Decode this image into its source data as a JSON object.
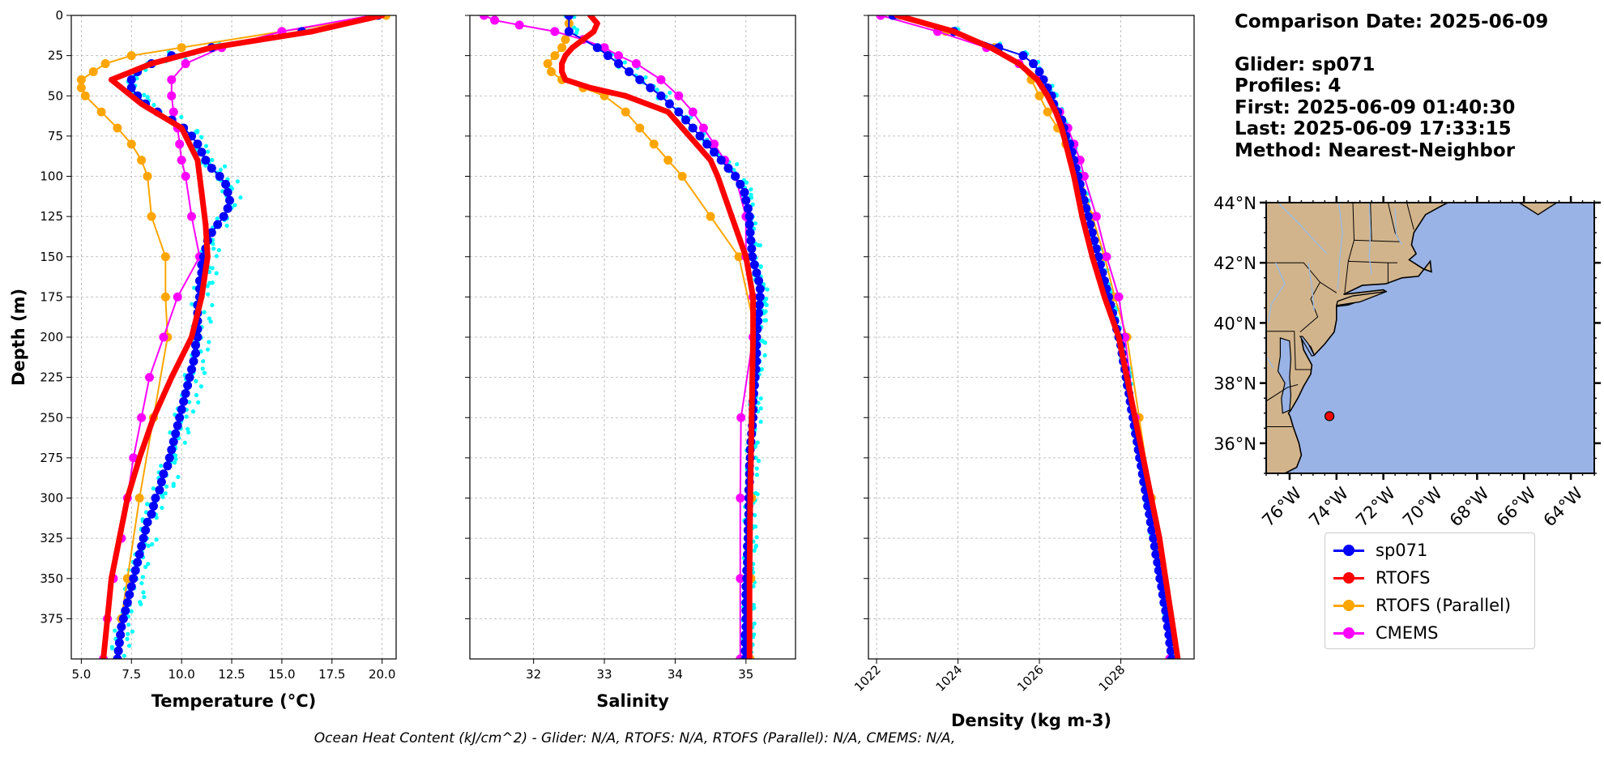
{
  "info": {
    "comparison_date": "Comparison Date: 2025-06-09",
    "glider": "Glider: sp071",
    "profiles": "Profiles: 4",
    "first": "First: 2025-06-09 01:40:30",
    "last": "Last: 2025-06-09 17:33:15",
    "method": "Method: Nearest-Neighbor"
  },
  "footer": "Ocean Heat Content (kJ/cm^2) - Glider: N/A,  RTOFS: N/A,  RTOFS (Parallel): N/A,  CMEMS: N/A,",
  "legend": [
    {
      "label": "sp071",
      "color": "#0000ff"
    },
    {
      "label": "RTOFS",
      "color": "#ff0000"
    },
    {
      "label": "RTOFS (Parallel)",
      "color": "#ffa500"
    },
    {
      "label": "CMEMS",
      "color": "#ff00ff"
    }
  ],
  "colors": {
    "glider": "#0000ff",
    "glider_raw": "#00ffff",
    "rtofs": "#ff0000",
    "rtofs_parallel": "#ffa500",
    "cmems": "#ff00ff",
    "land": "#d2b48c",
    "ocean": "#99b3e6"
  },
  "chart_data": [
    {
      "type": "line",
      "xlabel": "Temperature (°C)",
      "ylabel": "Depth (m)",
      "xlim": [
        4.5,
        20.7
      ],
      "ylim": [
        400,
        0
      ],
      "xticks": [
        "5.0",
        "7.5",
        "10.0",
        "12.5",
        "15.0",
        "17.5",
        "20.0"
      ],
      "yticks": [
        "0",
        "25",
        "50",
        "75",
        "100",
        "125",
        "150",
        "175",
        "200",
        "225",
        "250",
        "275",
        "300",
        "325",
        "350",
        "375"
      ],
      "grid": true,
      "series": [
        {
          "name": "sp071",
          "depth": [
            0,
            10,
            20,
            25,
            30,
            35,
            40,
            45,
            50,
            55,
            60,
            65,
            70,
            75,
            80,
            85,
            90,
            95,
            100,
            105,
            110,
            115,
            120,
            125,
            130,
            135,
            140,
            145,
            150,
            155,
            160,
            165,
            170,
            175,
            180,
            185,
            190,
            195,
            200,
            205,
            210,
            215,
            220,
            225,
            230,
            235,
            240,
            245,
            250,
            255,
            260,
            265,
            270,
            275,
            280,
            285,
            290,
            295,
            300,
            305,
            310,
            315,
            320,
            325,
            330,
            335,
            340,
            345,
            350,
            355,
            360,
            365,
            370,
            375,
            380,
            385,
            390,
            395,
            400
          ],
          "values": [
            19.8,
            16.0,
            11.5,
            9.5,
            8.5,
            7.8,
            7.5,
            7.5,
            7.8,
            8.2,
            8.8,
            9.5,
            10.1,
            10.5,
            10.8,
            11.0,
            11.2,
            11.5,
            11.9,
            12.2,
            12.3,
            12.4,
            12.3,
            12.1,
            11.8,
            11.5,
            11.3,
            11.2,
            11.1,
            11.0,
            11.0,
            10.9,
            10.9,
            10.9,
            10.8,
            10.8,
            10.8,
            10.8,
            10.8,
            10.7,
            10.7,
            10.6,
            10.5,
            10.4,
            10.3,
            10.2,
            10.1,
            10.0,
            9.9,
            9.8,
            9.7,
            9.6,
            9.5,
            9.4,
            9.3,
            9.1,
            9.0,
            8.9,
            8.7,
            8.6,
            8.5,
            8.3,
            8.2,
            8.1,
            8.0,
            7.9,
            7.8,
            7.7,
            7.6,
            7.5,
            7.4,
            7.3,
            7.2,
            7.1,
            7.0,
            6.95,
            6.9,
            6.85,
            6.8
          ]
        },
        {
          "name": "RTOFS",
          "depth": [
            0,
            10,
            20,
            30,
            40,
            55,
            70,
            90,
            110,
            130,
            150,
            175,
            200,
            225,
            250,
            275,
            300,
            325,
            350,
            375,
            400
          ],
          "values": [
            20.0,
            16.5,
            11.5,
            8.5,
            6.5,
            8.0,
            10.0,
            10.8,
            11.0,
            11.2,
            11.3,
            11.0,
            10.5,
            9.5,
            8.6,
            7.9,
            7.3,
            6.9,
            6.5,
            6.3,
            6.1
          ]
        },
        {
          "name": "RTOFS (Parallel)",
          "depth": [
            0,
            10,
            20,
            25,
            30,
            35,
            40,
            45,
            50,
            60,
            70,
            80,
            90,
            100,
            125,
            150,
            175,
            200,
            250,
            300,
            350,
            375,
            400
          ],
          "values": [
            20.2,
            15.0,
            10.0,
            7.5,
            6.2,
            5.6,
            5.0,
            5.0,
            5.2,
            6.0,
            6.8,
            7.5,
            8.0,
            8.3,
            8.5,
            9.2,
            9.2,
            9.3,
            8.6,
            7.9,
            7.3,
            7.0,
            6.8
          ]
        },
        {
          "name": "CMEMS",
          "depth": [
            0,
            10,
            20,
            30,
            40,
            50,
            60,
            70,
            80,
            90,
            100,
            125,
            150,
            175,
            200,
            225,
            250,
            275,
            300,
            325,
            350,
            375,
            400
          ],
          "values": [
            19.5,
            15.0,
            12.0,
            10.2,
            9.5,
            9.5,
            9.6,
            9.8,
            9.9,
            10.0,
            10.2,
            10.5,
            10.9,
            9.8,
            9.1,
            8.4,
            8.0,
            7.6,
            7.3,
            7.0,
            6.6,
            6.3,
            6.1
          ]
        }
      ]
    },
    {
      "type": "line",
      "xlabel": "Salinity",
      "xlim": [
        31.1,
        35.7
      ],
      "ylim": [
        400,
        0
      ],
      "xticks": [
        "32",
        "33",
        "34",
        "35"
      ],
      "grid": true,
      "series": [
        {
          "name": "sp071",
          "depth": [
            0,
            10,
            20,
            25,
            30,
            35,
            40,
            45,
            50,
            55,
            60,
            65,
            70,
            75,
            80,
            85,
            90,
            95,
            100,
            105,
            110,
            115,
            120,
            125,
            130,
            135,
            140,
            145,
            150,
            155,
            160,
            165,
            170,
            175,
            180,
            185,
            190,
            195,
            200,
            205,
            210,
            215,
            220,
            225,
            230,
            235,
            240,
            245,
            250,
            255,
            260,
            265,
            270,
            275,
            280,
            285,
            290,
            295,
            300,
            305,
            310,
            315,
            320,
            325,
            330,
            335,
            340,
            345,
            350,
            355,
            360,
            365,
            370,
            375,
            380,
            385,
            390,
            395,
            400
          ],
          "values": [
            32.5,
            32.5,
            32.9,
            33.05,
            33.2,
            33.35,
            33.5,
            33.65,
            33.8,
            33.92,
            34.05,
            34.15,
            34.25,
            34.35,
            34.45,
            34.55,
            34.65,
            34.75,
            34.85,
            34.92,
            34.98,
            35.0,
            35.03,
            35.05,
            35.05,
            35.06,
            35.07,
            35.08,
            35.09,
            35.12,
            35.15,
            35.18,
            35.2,
            35.2,
            35.19,
            35.18,
            35.17,
            35.16,
            35.15,
            35.15,
            35.15,
            35.15,
            35.14,
            35.13,
            35.12,
            35.11,
            35.1,
            35.1,
            35.1,
            35.09,
            35.08,
            35.07,
            35.06,
            35.06,
            35.05,
            35.05,
            35.05,
            35.04,
            35.04,
            35.04,
            35.04,
            35.03,
            35.03,
            35.03,
            35.02,
            35.02,
            35.02,
            35.01,
            35.01,
            35.0,
            35.0,
            35.0,
            35.0,
            35.0,
            35.0,
            34.99,
            34.99,
            34.99,
            34.99
          ]
        },
        {
          "name": "RTOFS",
          "depth": [
            0,
            5,
            10,
            15,
            20,
            25,
            30,
            35,
            40,
            45,
            50,
            60,
            70,
            80,
            90,
            100,
            125,
            150,
            175,
            200,
            250,
            300,
            350,
            400
          ],
          "values": [
            32.8,
            32.9,
            32.85,
            32.7,
            32.55,
            32.45,
            32.4,
            32.4,
            32.45,
            32.8,
            33.3,
            33.9,
            34.1,
            34.3,
            34.5,
            34.6,
            34.8,
            35.0,
            35.1,
            35.1,
            35.08,
            35.06,
            35.05,
            35.05
          ]
        },
        {
          "name": "RTOFS (Parallel)",
          "depth": [
            0,
            5,
            10,
            15,
            20,
            25,
            30,
            35,
            40,
            45,
            50,
            60,
            70,
            80,
            90,
            100,
            125,
            150,
            200,
            250,
            300,
            350,
            400
          ],
          "values": [
            32.5,
            32.5,
            32.5,
            32.45,
            32.4,
            32.3,
            32.2,
            32.25,
            32.4,
            32.7,
            33.0,
            33.3,
            33.5,
            33.7,
            33.9,
            34.1,
            34.5,
            34.9,
            35.15,
            35.1,
            35.08,
            35.07,
            35.06
          ]
        },
        {
          "name": "CMEMS",
          "depth": [
            0,
            3,
            6,
            10,
            15,
            20,
            25,
            30,
            40,
            50,
            60,
            70,
            80,
            90,
            100,
            125,
            150,
            175,
            200,
            250,
            300,
            350,
            400
          ],
          "values": [
            31.3,
            31.45,
            31.8,
            32.3,
            32.7,
            33.0,
            33.2,
            33.45,
            33.8,
            34.05,
            34.25,
            34.4,
            34.55,
            34.7,
            34.85,
            35.0,
            35.0,
            35.1,
            35.1,
            34.93,
            34.92,
            34.92,
            34.92
          ]
        }
      ]
    },
    {
      "type": "line",
      "xlabel": "Density (kg m-3)",
      "xlim": [
        1021.8,
        1029.8
      ],
      "ylim": [
        400,
        0
      ],
      "xticks": [
        "1022",
        "1024",
        "1026",
        "1028"
      ],
      "grid": true,
      "series": [
        {
          "name": "sp071",
          "depth": [
            0,
            10,
            20,
            25,
            30,
            35,
            40,
            45,
            50,
            55,
            60,
            65,
            70,
            75,
            80,
            85,
            90,
            95,
            100,
            105,
            110,
            115,
            120,
            125,
            130,
            135,
            140,
            145,
            150,
            155,
            160,
            165,
            170,
            175,
            180,
            185,
            190,
            195,
            200,
            205,
            210,
            215,
            220,
            225,
            230,
            235,
            240,
            245,
            250,
            255,
            260,
            265,
            270,
            275,
            280,
            285,
            290,
            295,
            300,
            305,
            310,
            315,
            320,
            325,
            330,
            335,
            340,
            345,
            350,
            355,
            360,
            365,
            370,
            375,
            380,
            385,
            390,
            395,
            400
          ],
          "values": [
            1022.4,
            1023.9,
            1025.0,
            1025.6,
            1025.85,
            1026.0,
            1026.1,
            1026.2,
            1026.3,
            1026.35,
            1026.45,
            1026.55,
            1026.6,
            1026.65,
            1026.75,
            1026.8,
            1026.85,
            1026.9,
            1026.95,
            1027.0,
            1027.05,
            1027.1,
            1027.15,
            1027.2,
            1027.25,
            1027.3,
            1027.35,
            1027.4,
            1027.45,
            1027.5,
            1027.55,
            1027.6,
            1027.65,
            1027.7,
            1027.75,
            1027.8,
            1027.85,
            1027.9,
            1027.95,
            1028.0,
            1028.03,
            1028.06,
            1028.1,
            1028.13,
            1028.16,
            1028.2,
            1028.23,
            1028.26,
            1028.3,
            1028.33,
            1028.36,
            1028.4,
            1028.43,
            1028.46,
            1028.5,
            1028.53,
            1028.56,
            1028.6,
            1028.63,
            1028.66,
            1028.7,
            1028.73,
            1028.76,
            1028.8,
            1028.83,
            1028.86,
            1028.9,
            1028.93,
            1028.96,
            1029.0,
            1029.03,
            1029.06,
            1029.1,
            1029.12,
            1029.15,
            1029.18,
            1029.2,
            1029.23,
            1029.25
          ]
        },
        {
          "name": "RTOFS",
          "depth": [
            0,
            10,
            20,
            30,
            40,
            50,
            60,
            70,
            80,
            90,
            100,
            125,
            150,
            175,
            200,
            225,
            250,
            275,
            300,
            325,
            350,
            375,
            400
          ],
          "values": [
            1022.5,
            1023.9,
            1024.8,
            1025.5,
            1025.95,
            1026.2,
            1026.4,
            1026.55,
            1026.65,
            1026.75,
            1026.85,
            1027.05,
            1027.3,
            1027.6,
            1027.95,
            1028.15,
            1028.35,
            1028.55,
            1028.75,
            1028.95,
            1029.1,
            1029.25,
            1029.4
          ]
        },
        {
          "name": "RTOFS (Parallel)",
          "depth": [
            0,
            10,
            20,
            30,
            40,
            50,
            60,
            70,
            80,
            90,
            100,
            125,
            150,
            175,
            200,
            250,
            300,
            350,
            400
          ],
          "values": [
            1022.6,
            1023.7,
            1024.9,
            1025.5,
            1025.8,
            1026.0,
            1026.2,
            1026.45,
            1026.65,
            1026.85,
            1027.0,
            1027.3,
            1027.6,
            1027.85,
            1028.15,
            1028.45,
            1028.75,
            1029.0,
            1029.2
          ]
        },
        {
          "name": "CMEMS",
          "depth": [
            0,
            10,
            20,
            30,
            40,
            50,
            60,
            70,
            80,
            90,
            100,
            125,
            150,
            175,
            200,
            250,
            300,
            350,
            400
          ],
          "values": [
            1022.1,
            1023.5,
            1024.7,
            1025.5,
            1026.0,
            1026.3,
            1026.5,
            1026.7,
            1026.85,
            1027.0,
            1027.1,
            1027.4,
            1027.65,
            1027.95,
            1028.1,
            1028.35,
            1028.7,
            1029.0,
            1029.2
          ]
        }
      ]
    }
  ],
  "map": {
    "lat_labels": [
      "44°N",
      "42°N",
      "40°N",
      "38°N",
      "36°N"
    ],
    "lon_labels": [
      "76°W",
      "74°W",
      "72°W",
      "70°W",
      "68°W",
      "66°W",
      "64°W"
    ],
    "lon_range": [
      -77,
      -63
    ],
    "lat_range": [
      35,
      44
    ],
    "glider_position": {
      "lon": -74.3,
      "lat": 36.9
    }
  }
}
